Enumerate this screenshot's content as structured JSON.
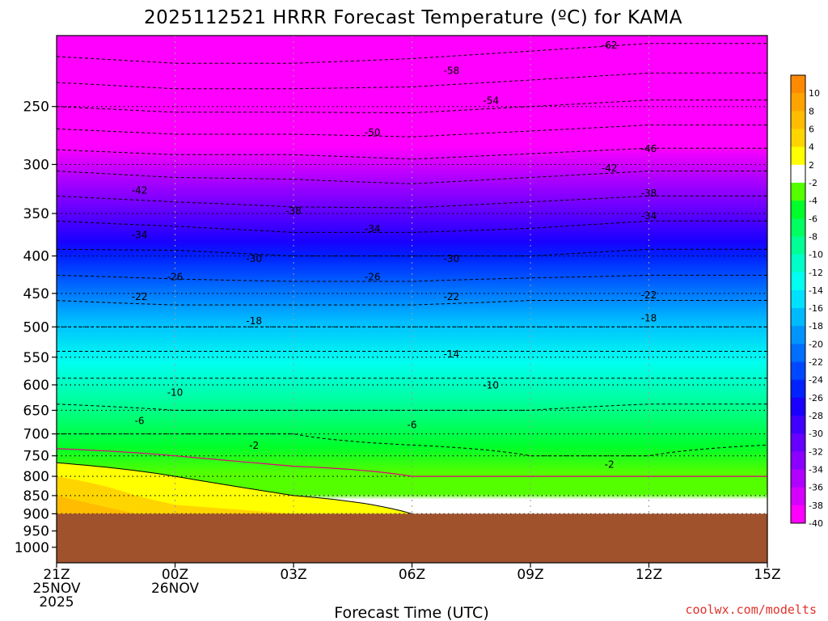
{
  "chart_data": {
    "type": "heatmap",
    "title": "2025112521 HRRR Forecast Temperature (ºC) for KAMA",
    "xlabel": "Forecast Time (UTC)",
    "ylabel": "",
    "credit": "coolwx.com/modelts",
    "y_scale": "log-pressure",
    "ylim": [
      1050,
      200
    ],
    "y_ticks": [
      "250",
      "300",
      "350",
      "400",
      "450",
      "500",
      "550",
      "600",
      "650",
      "700",
      "750",
      "800",
      "850",
      "900",
      "950",
      "1000"
    ],
    "x_ticks": [
      {
        "line1": "21Z",
        "line2": "25NOV",
        "line3": "2025"
      },
      {
        "line1": "00Z",
        "line2": "26NOV",
        "line3": ""
      },
      {
        "line1": "03Z",
        "line2": "",
        "line3": ""
      },
      {
        "line1": "06Z",
        "line2": "",
        "line3": ""
      },
      {
        "line1": "09Z",
        "line2": "",
        "line3": ""
      },
      {
        "line1": "12Z",
        "line2": "",
        "line3": ""
      },
      {
        "line1": "15Z",
        "line2": "",
        "line3": ""
      }
    ],
    "xlim_hours": [
      0,
      18
    ],
    "surface_pressure": 900,
    "colorbar_labels": [
      "10",
      "8",
      "6",
      "4",
      "2",
      "-2",
      "-4",
      "-6",
      "-8",
      "-10",
      "-12",
      "-14",
      "-16",
      "-18",
      "-20",
      "-22",
      "-24",
      "-26",
      "-28",
      "-30",
      "-32",
      "-34",
      "-36",
      "-38",
      "-40"
    ],
    "colorbar_colors": [
      "#ff8a00",
      "#ffa300",
      "#ffbc00",
      "#ffd500",
      "#ffff00",
      "#ffffff",
      "#54ff00",
      "#00ff2a",
      "#00ff60",
      "#00ff95",
      "#00ffc8",
      "#00fff0",
      "#00e0ff",
      "#00baff",
      "#0094ff",
      "#006eff",
      "#0048ff",
      "#0022ff",
      "#1a00ff",
      "#4000ff",
      "#6600ff",
      "#8c00ff",
      "#b000ff",
      "#d600ff",
      "#ff00ff"
    ],
    "temperature_profiles": [
      {
        "hour": 0,
        "levels": [
          [
            250,
            -54
          ],
          [
            300,
            -43
          ],
          [
            350,
            -35
          ],
          [
            400,
            -29
          ],
          [
            450,
            -23
          ],
          [
            500,
            -18
          ],
          [
            550,
            -13
          ],
          [
            600,
            -9
          ],
          [
            650,
            -5
          ],
          [
            700,
            -2
          ],
          [
            750,
            1
          ],
          [
            800,
            4
          ],
          [
            850,
            6
          ],
          [
            900,
            8
          ]
        ]
      },
      {
        "hour": 3,
        "levels": [
          [
            250,
            -55
          ],
          [
            300,
            -44
          ],
          [
            350,
            -36
          ],
          [
            400,
            -29
          ],
          [
            450,
            -24
          ],
          [
            500,
            -18
          ],
          [
            550,
            -13
          ],
          [
            600,
            -9
          ],
          [
            650,
            -6
          ],
          [
            700,
            -2
          ],
          [
            750,
            0
          ],
          [
            800,
            2
          ],
          [
            850,
            3
          ],
          [
            900,
            5
          ]
        ]
      },
      {
        "hour": 6,
        "levels": [
          [
            250,
            -55
          ],
          [
            300,
            -44
          ],
          [
            350,
            -37
          ],
          [
            400,
            -30
          ],
          [
            450,
            -24
          ],
          [
            500,
            -18
          ],
          [
            550,
            -13
          ],
          [
            600,
            -9
          ],
          [
            650,
            -6
          ],
          [
            700,
            -2
          ],
          [
            750,
            -1
          ],
          [
            800,
            1
          ],
          [
            850,
            2
          ],
          [
            900,
            4
          ]
        ]
      },
      {
        "hour": 9,
        "levels": [
          [
            250,
            -55
          ],
          [
            300,
            -45
          ],
          [
            350,
            -37
          ],
          [
            400,
            -30
          ],
          [
            450,
            -24
          ],
          [
            500,
            -18
          ],
          [
            550,
            -13
          ],
          [
            600,
            -9
          ],
          [
            650,
            -6
          ],
          [
            700,
            -3
          ],
          [
            750,
            -1
          ],
          [
            800,
            0
          ],
          [
            850,
            1
          ],
          [
            900,
            2
          ]
        ]
      },
      {
        "hour": 12,
        "levels": [
          [
            250,
            -54
          ],
          [
            300,
            -44
          ],
          [
            350,
            -36
          ],
          [
            400,
            -30
          ],
          [
            450,
            -23
          ],
          [
            500,
            -18
          ],
          [
            550,
            -13
          ],
          [
            600,
            -9
          ],
          [
            650,
            -6
          ],
          [
            700,
            -3
          ],
          [
            750,
            -2
          ],
          [
            800,
            0
          ],
          [
            850,
            0
          ],
          [
            900,
            1
          ]
        ]
      },
      {
        "hour": 15,
        "levels": [
          [
            250,
            -53
          ],
          [
            300,
            -43
          ],
          [
            350,
            -35
          ],
          [
            400,
            -29
          ],
          [
            450,
            -23
          ],
          [
            500,
            -18
          ],
          [
            550,
            -13
          ],
          [
            600,
            -9
          ],
          [
            650,
            -5
          ],
          [
            700,
            -3
          ],
          [
            750,
            -2
          ],
          [
            800,
            0
          ],
          [
            850,
            0
          ],
          [
            900,
            1
          ]
        ]
      },
      {
        "hour": 18,
        "levels": [
          [
            250,
            -53
          ],
          [
            300,
            -43
          ],
          [
            350,
            -35
          ],
          [
            400,
            -29
          ],
          [
            450,
            -23
          ],
          [
            500,
            -18
          ],
          [
            550,
            -13
          ],
          [
            600,
            -9
          ],
          [
            650,
            -5
          ],
          [
            700,
            -3
          ],
          [
            750,
            -1
          ],
          [
            800,
            0
          ],
          [
            850,
            0
          ],
          [
            900,
            1
          ]
        ]
      }
    ],
    "contour_labels": [
      {
        "text": "-62",
        "hour": 14.0,
        "p": 206
      },
      {
        "text": "-58",
        "hour": 10.0,
        "p": 223
      },
      {
        "text": "-54",
        "hour": 11.0,
        "p": 245
      },
      {
        "text": "-50",
        "hour": 8.0,
        "p": 271
      },
      {
        "text": "-46",
        "hour": 15.0,
        "p": 285
      },
      {
        "text": "-42",
        "hour": 2.1,
        "p": 325
      },
      {
        "text": "-42",
        "hour": 14.0,
        "p": 303
      },
      {
        "text": "-38",
        "hour": 6.0,
        "p": 347
      },
      {
        "text": "-38",
        "hour": 15.0,
        "p": 328
      },
      {
        "text": "-34",
        "hour": 2.1,
        "p": 374
      },
      {
        "text": "-34",
        "hour": 8.0,
        "p": 367
      },
      {
        "text": "-34",
        "hour": 15.0,
        "p": 352
      },
      {
        "text": "-30",
        "hour": 5.0,
        "p": 403
      },
      {
        "text": "-30",
        "hour": 10.0,
        "p": 403
      },
      {
        "text": "-26",
        "hour": 3.0,
        "p": 427
      },
      {
        "text": "-26",
        "hour": 8.0,
        "p": 427
      },
      {
        "text": "-22",
        "hour": 2.1,
        "p": 454
      },
      {
        "text": "-22",
        "hour": 10.0,
        "p": 454
      },
      {
        "text": "-22",
        "hour": 15.0,
        "p": 452
      },
      {
        "text": "-18",
        "hour": 5.0,
        "p": 490
      },
      {
        "text": "-18",
        "hour": 15.0,
        "p": 486
      },
      {
        "text": "-14",
        "hour": 10.0,
        "p": 544
      },
      {
        "text": "-10",
        "hour": 3.0,
        "p": 614
      },
      {
        "text": "-10",
        "hour": 11.0,
        "p": 600
      },
      {
        "text": "-6",
        "hour": 2.1,
        "p": 671
      },
      {
        "text": "-6",
        "hour": 9.0,
        "p": 680
      },
      {
        "text": "-2",
        "hour": 5.0,
        "p": 725
      },
      {
        "text": "-2",
        "hour": 14.0,
        "p": 770
      }
    ]
  }
}
